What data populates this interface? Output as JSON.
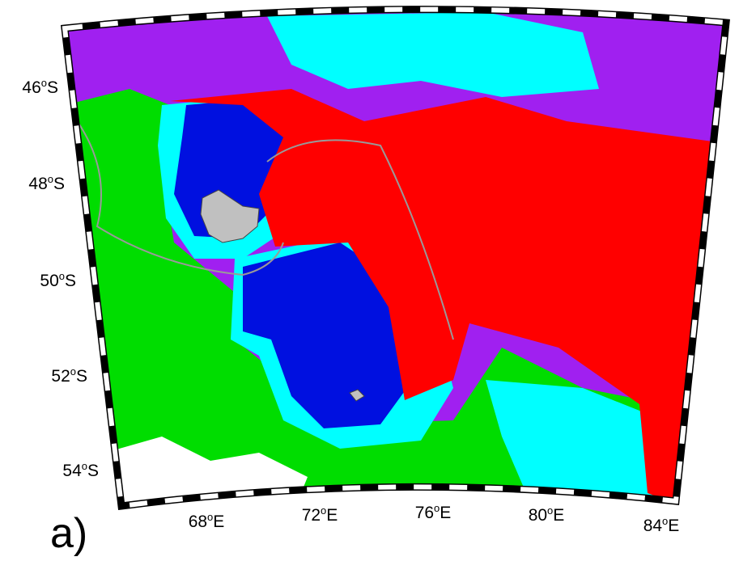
{
  "panel_label": "a)",
  "lat_labels": [
    {
      "deg": "46",
      "sup": "o",
      "dir": "S"
    },
    {
      "deg": "48",
      "sup": "o",
      "dir": "S"
    },
    {
      "deg": "50",
      "sup": "o",
      "dir": "S"
    },
    {
      "deg": "52",
      "sup": "o",
      "dir": "S"
    },
    {
      "deg": "54",
      "sup": "o",
      "dir": "S"
    }
  ],
  "lon_labels": [
    {
      "deg": "68",
      "sup": "o",
      "dir": "E"
    },
    {
      "deg": "72",
      "sup": "o",
      "dir": "E"
    },
    {
      "deg": "76",
      "sup": "o",
      "dir": "E"
    },
    {
      "deg": "80",
      "sup": "o",
      "dir": "E"
    },
    {
      "deg": "84",
      "sup": "o",
      "dir": "E"
    }
  ]
}
